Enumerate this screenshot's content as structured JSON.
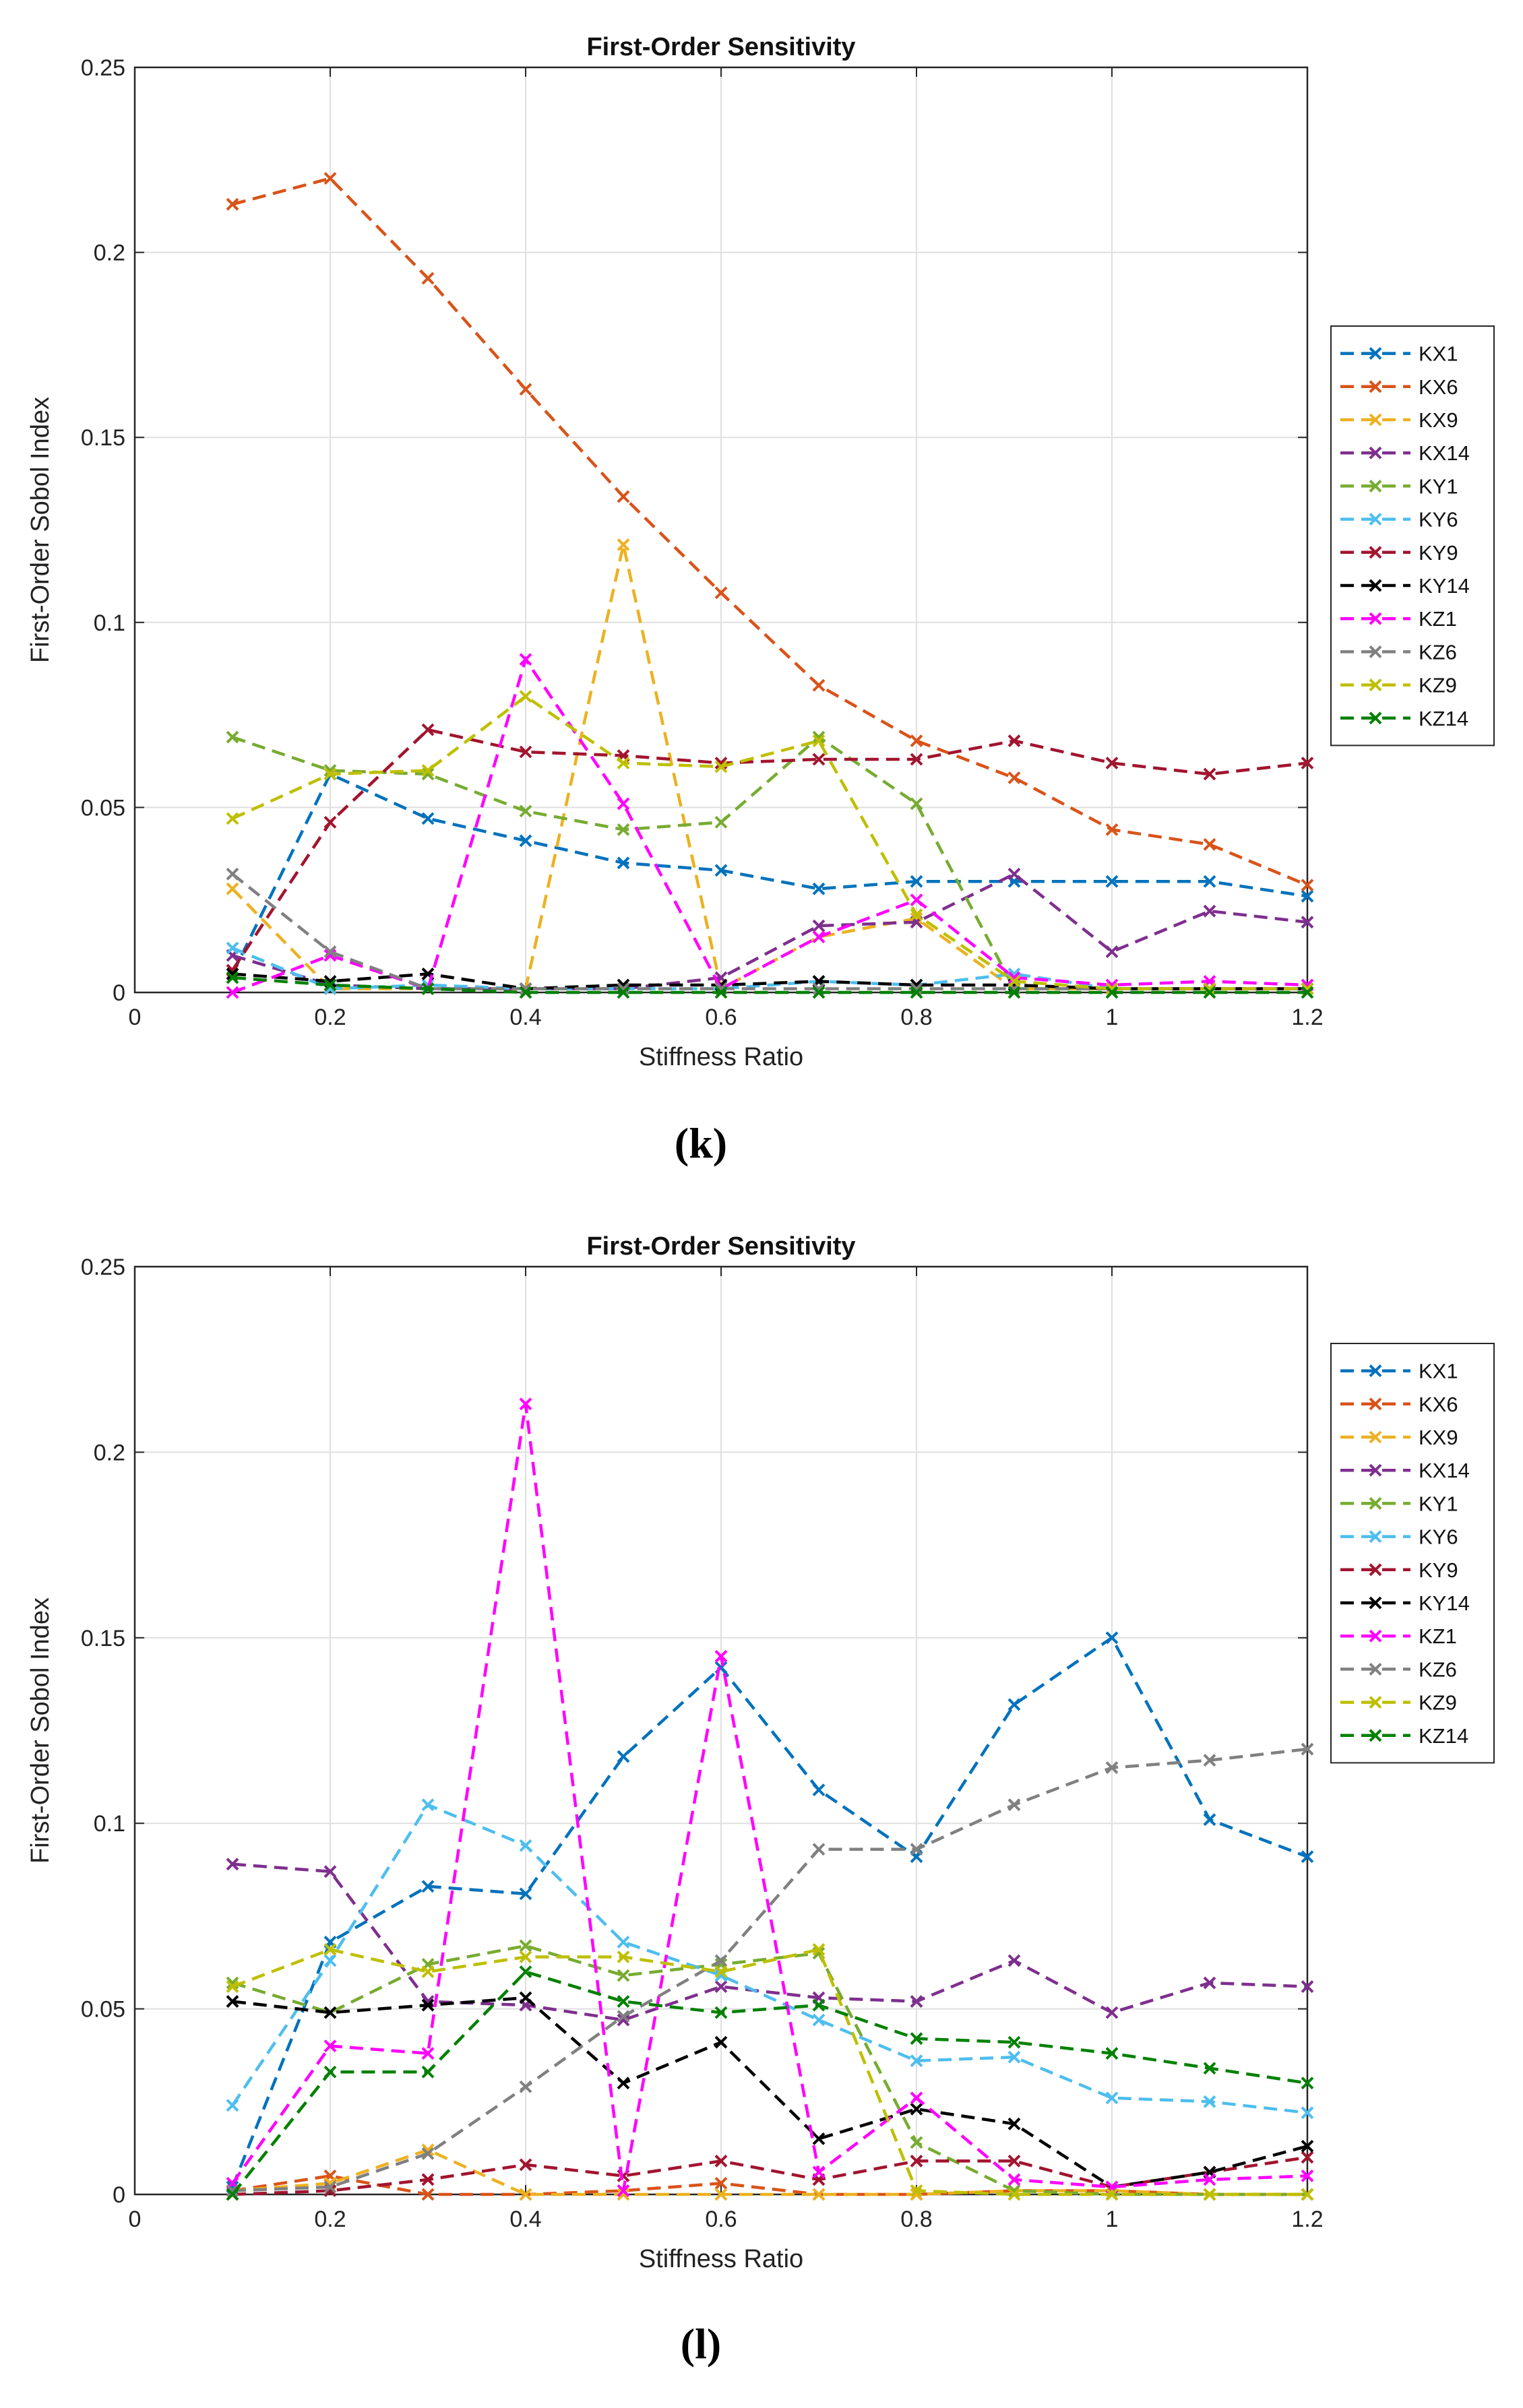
{
  "colors": {
    "KX1": "#0072BD",
    "KX6": "#D95319",
    "KX9": "#EDB120",
    "KX14": "#7E2F8E",
    "KY1": "#77AC30",
    "KY6": "#4DBEEE",
    "KY9": "#A2142F",
    "KY14": "#000000",
    "KZ1": "#FF00FF",
    "KZ6": "#808080",
    "KZ9": "#BFBF00",
    "KZ14": "#008000"
  },
  "chart_data": [
    {
      "type": "line",
      "subfigure": "(k)",
      "title": "First-Order Sensitivity",
      "xlabel": "Stiffness Ratio",
      "ylabel": "First-Order Sobol Index",
      "xlim": [
        0,
        1.2
      ],
      "ylim": [
        0,
        0.25
      ],
      "xticks": [
        "0",
        "0.2",
        "0.4",
        "0.6",
        "0.8",
        "1",
        "1.2"
      ],
      "yticks": [
        "0",
        "0.05",
        "0.1",
        "0.15",
        "0.2",
        "0.25"
      ],
      "grid": true,
      "legend_position": "outside-right",
      "x": [
        0.1,
        0.2,
        0.3,
        0.4,
        0.5,
        0.6,
        0.7,
        0.8,
        0.9,
        1.0,
        1.1,
        1.2
      ],
      "series": [
        {
          "name": "KX1",
          "values": [
            0.005,
            0.059,
            0.047,
            0.041,
            0.035,
            0.033,
            0.028,
            0.03,
            0.03,
            0.03,
            0.03,
            0.026
          ]
        },
        {
          "name": "KX6",
          "values": [
            0.213,
            0.22,
            0.193,
            0.163,
            0.134,
            0.108,
            0.083,
            0.068,
            0.058,
            0.044,
            0.04,
            0.029
          ]
        },
        {
          "name": "KX9",
          "values": [
            0.028,
            0.001,
            0.001,
            0.001,
            0.121,
            0.001,
            0.015,
            0.02,
            0.001,
            0.001,
            0.001,
            0.001
          ]
        },
        {
          "name": "KX14",
          "values": [
            0.01,
            0.002,
            0.001,
            0.001,
            0.001,
            0.004,
            0.018,
            0.019,
            0.032,
            0.011,
            0.022,
            0.019
          ]
        },
        {
          "name": "KY1",
          "values": [
            0.069,
            0.06,
            0.059,
            0.049,
            0.044,
            0.046,
            0.069,
            0.051,
            0.001,
            0.001,
            0.001,
            0.001
          ]
        },
        {
          "name": "KY6",
          "values": [
            0.012,
            0.001,
            0.002,
            0.001,
            0.001,
            0.001,
            0.003,
            0.002,
            0.005,
            0.001,
            0.001,
            0.001
          ]
        },
        {
          "name": "KY9",
          "values": [
            0.006,
            0.046,
            0.071,
            0.065,
            0.064,
            0.062,
            0.063,
            0.063,
            0.068,
            0.062,
            0.059,
            0.062
          ]
        },
        {
          "name": "KY14",
          "values": [
            0.005,
            0.003,
            0.005,
            0.001,
            0.002,
            0.002,
            0.003,
            0.002,
            0.002,
            0.001,
            0.001,
            0.001
          ]
        },
        {
          "name": "KZ1",
          "values": [
            0.0,
            0.01,
            0.001,
            0.09,
            0.051,
            0.001,
            0.015,
            0.025,
            0.004,
            0.002,
            0.003,
            0.002
          ]
        },
        {
          "name": "KZ6",
          "values": [
            0.032,
            0.011,
            0.001,
            0.001,
            0.001,
            0.001,
            0.001,
            0.001,
            0.001,
            0.001,
            0.001,
            0.001
          ]
        },
        {
          "name": "KZ9",
          "values": [
            0.047,
            0.059,
            0.06,
            0.08,
            0.062,
            0.061,
            0.068,
            0.021,
            0.003,
            0.001,
            0.001,
            0.001
          ]
        },
        {
          "name": "KZ14",
          "values": [
            0.004,
            0.002,
            0.001,
            0.0,
            0.0,
            0.0,
            0.0,
            0.0,
            0.0,
            0.0,
            0.0,
            0.0
          ]
        }
      ]
    },
    {
      "type": "line",
      "subfigure": "(l)",
      "title": "First-Order Sensitivity",
      "xlabel": "Stiffness Ratio",
      "ylabel": "First-Order Sobol Index",
      "xlim": [
        0,
        1.2
      ],
      "ylim": [
        0,
        0.25
      ],
      "xticks": [
        "0",
        "0.2",
        "0.4",
        "0.6",
        "0.8",
        "1",
        "1.2"
      ],
      "yticks": [
        "0",
        "0.05",
        "0.1",
        "0.15",
        "0.2",
        "0.25"
      ],
      "grid": true,
      "legend_position": "outside-right",
      "x": [
        0.1,
        0.2,
        0.3,
        0.4,
        0.5,
        0.6,
        0.7,
        0.8,
        0.9,
        1.0,
        1.1,
        1.2
      ],
      "series": [
        {
          "name": "KX1",
          "values": [
            0.002,
            0.068,
            0.083,
            0.081,
            0.118,
            0.142,
            0.109,
            0.091,
            0.132,
            0.15,
            0.101,
            0.091
          ]
        },
        {
          "name": "KX6",
          "values": [
            0.001,
            0.005,
            0.0,
            0.0,
            0.001,
            0.003,
            0.0,
            0.0,
            0.001,
            0.001,
            0.0,
            0.0
          ]
        },
        {
          "name": "KX9",
          "values": [
            0.001,
            0.003,
            0.012,
            0.0,
            0.0,
            0.0,
            0.0,
            0.0,
            0.001,
            0.001,
            0.0,
            0.0
          ]
        },
        {
          "name": "KX14",
          "values": [
            0.089,
            0.087,
            0.052,
            0.051,
            0.047,
            0.056,
            0.053,
            0.052,
            0.063,
            0.049,
            0.057,
            0.056
          ]
        },
        {
          "name": "KY1",
          "values": [
            0.057,
            0.049,
            0.062,
            0.067,
            0.059,
            0.062,
            0.065,
            0.014,
            0.001,
            0.0,
            0.0,
            0.0
          ]
        },
        {
          "name": "KY6",
          "values": [
            0.024,
            0.063,
            0.105,
            0.094,
            0.068,
            0.059,
            0.047,
            0.036,
            0.037,
            0.026,
            0.025,
            0.022
          ]
        },
        {
          "name": "KY9",
          "values": [
            0.0,
            0.001,
            0.004,
            0.008,
            0.005,
            0.009,
            0.004,
            0.009,
            0.009,
            0.002,
            0.006,
            0.01
          ]
        },
        {
          "name": "KY14",
          "values": [
            0.052,
            0.049,
            0.051,
            0.053,
            0.03,
            0.041,
            0.015,
            0.023,
            0.019,
            0.002,
            0.006,
            0.013
          ]
        },
        {
          "name": "KZ1",
          "values": [
            0.003,
            0.04,
            0.038,
            0.213,
            0.001,
            0.145,
            0.006,
            0.026,
            0.004,
            0.002,
            0.004,
            0.005
          ]
        },
        {
          "name": "KZ6",
          "values": [
            0.001,
            0.002,
            0.011,
            0.029,
            0.048,
            0.063,
            0.093,
            0.093,
            0.105,
            0.115,
            0.117,
            0.12
          ]
        },
        {
          "name": "KZ9",
          "values": [
            0.056,
            0.066,
            0.06,
            0.064,
            0.064,
            0.06,
            0.066,
            0.001,
            0.0,
            0.0,
            0.0,
            0.0
          ]
        },
        {
          "name": "KZ14",
          "values": [
            0.0,
            0.033,
            0.033,
            0.06,
            0.052,
            0.049,
            0.051,
            0.042,
            0.041,
            0.038,
            0.034,
            0.03
          ]
        }
      ]
    }
  ]
}
